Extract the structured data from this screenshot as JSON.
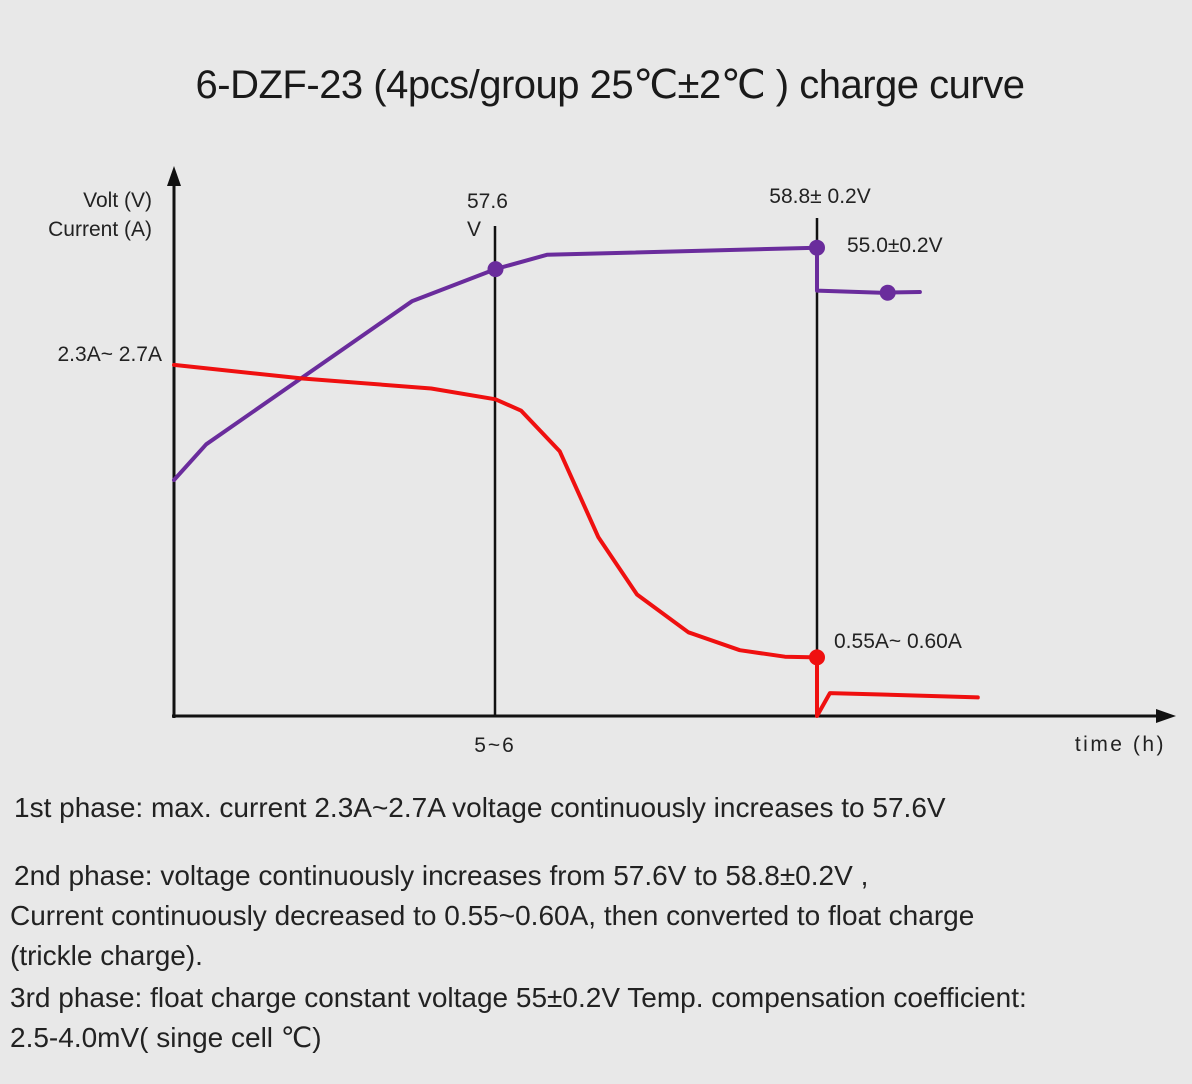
{
  "title": "6-DZF-23 (4pcs/group  25℃±2℃ ) charge curve",
  "chart_data": {
    "type": "line",
    "title": "6-DZF-23 (4pcs/group  25℃±2℃ ) charge curve",
    "ylabel_line1": "Volt (V)",
    "ylabel_line2": "Current (A)",
    "xlabel": "time (h)",
    "xticks": [
      "5~6"
    ],
    "grid": false,
    "series": [
      {
        "name": "Voltage",
        "color": "#6a2c9c",
        "x": [
          0,
          0.05,
          0.37,
          0.5,
          0.58,
          1.0,
          1.0,
          1.1,
          1.16
        ],
        "y": [
          0.33,
          0.38,
          0.58,
          0.625,
          0.645,
          0.655,
          0.595,
          0.592,
          0.593
        ]
      },
      {
        "name": "Current",
        "color": "#ef1010",
        "x": [
          0,
          0.2,
          0.4,
          0.5,
          0.54,
          0.6,
          0.66,
          0.72,
          0.8,
          0.88,
          0.95,
          1.0,
          1.0,
          1.02,
          1.1,
          1.25
        ],
        "y": [
          0.491,
          0.472,
          0.458,
          0.443,
          0.427,
          0.37,
          0.25,
          0.17,
          0.117,
          0.092,
          0.083,
          0.082,
          0.0,
          0.032,
          0.03,
          0.026
        ]
      }
    ],
    "markers": [
      {
        "x": 0.5,
        "y": 0.625,
        "color": "#6a2c9c"
      },
      {
        "x": 1.0,
        "y": 0.655,
        "color": "#6a2c9c"
      },
      {
        "x": 1.11,
        "y": 0.592,
        "color": "#6a2c9c"
      },
      {
        "x": 1.0,
        "y": 0.082,
        "color": "#ef1010"
      }
    ],
    "annotations": {
      "current_start": "2.3A~ 2.7A",
      "v1_line1": "57.6",
      "v1_line2": "V",
      "v2": "58.8± 0.2V",
      "v3": "55.0±0.2V",
      "i_end": "0.55A~ 0.60A"
    }
  },
  "notes": {
    "phase1": "1st phase: max. current 2.3A~2.7A voltage continuously increases to 57.6V",
    "phase2_line1": "2nd phase: voltage continuously increases from 57.6V to 58.8±0.2V ,",
    "phase2_line2": "Current continuously decreased to 0.55~0.60A, then converted to float charge",
    "phase2_line3": "(trickle charge).",
    "phase3_line1": "3rd phase: float charge constant voltage 55±0.2V  Temp. compensation coefficient:",
    "phase3_line2": "2.5-4.0mV( singe cell ℃)"
  }
}
